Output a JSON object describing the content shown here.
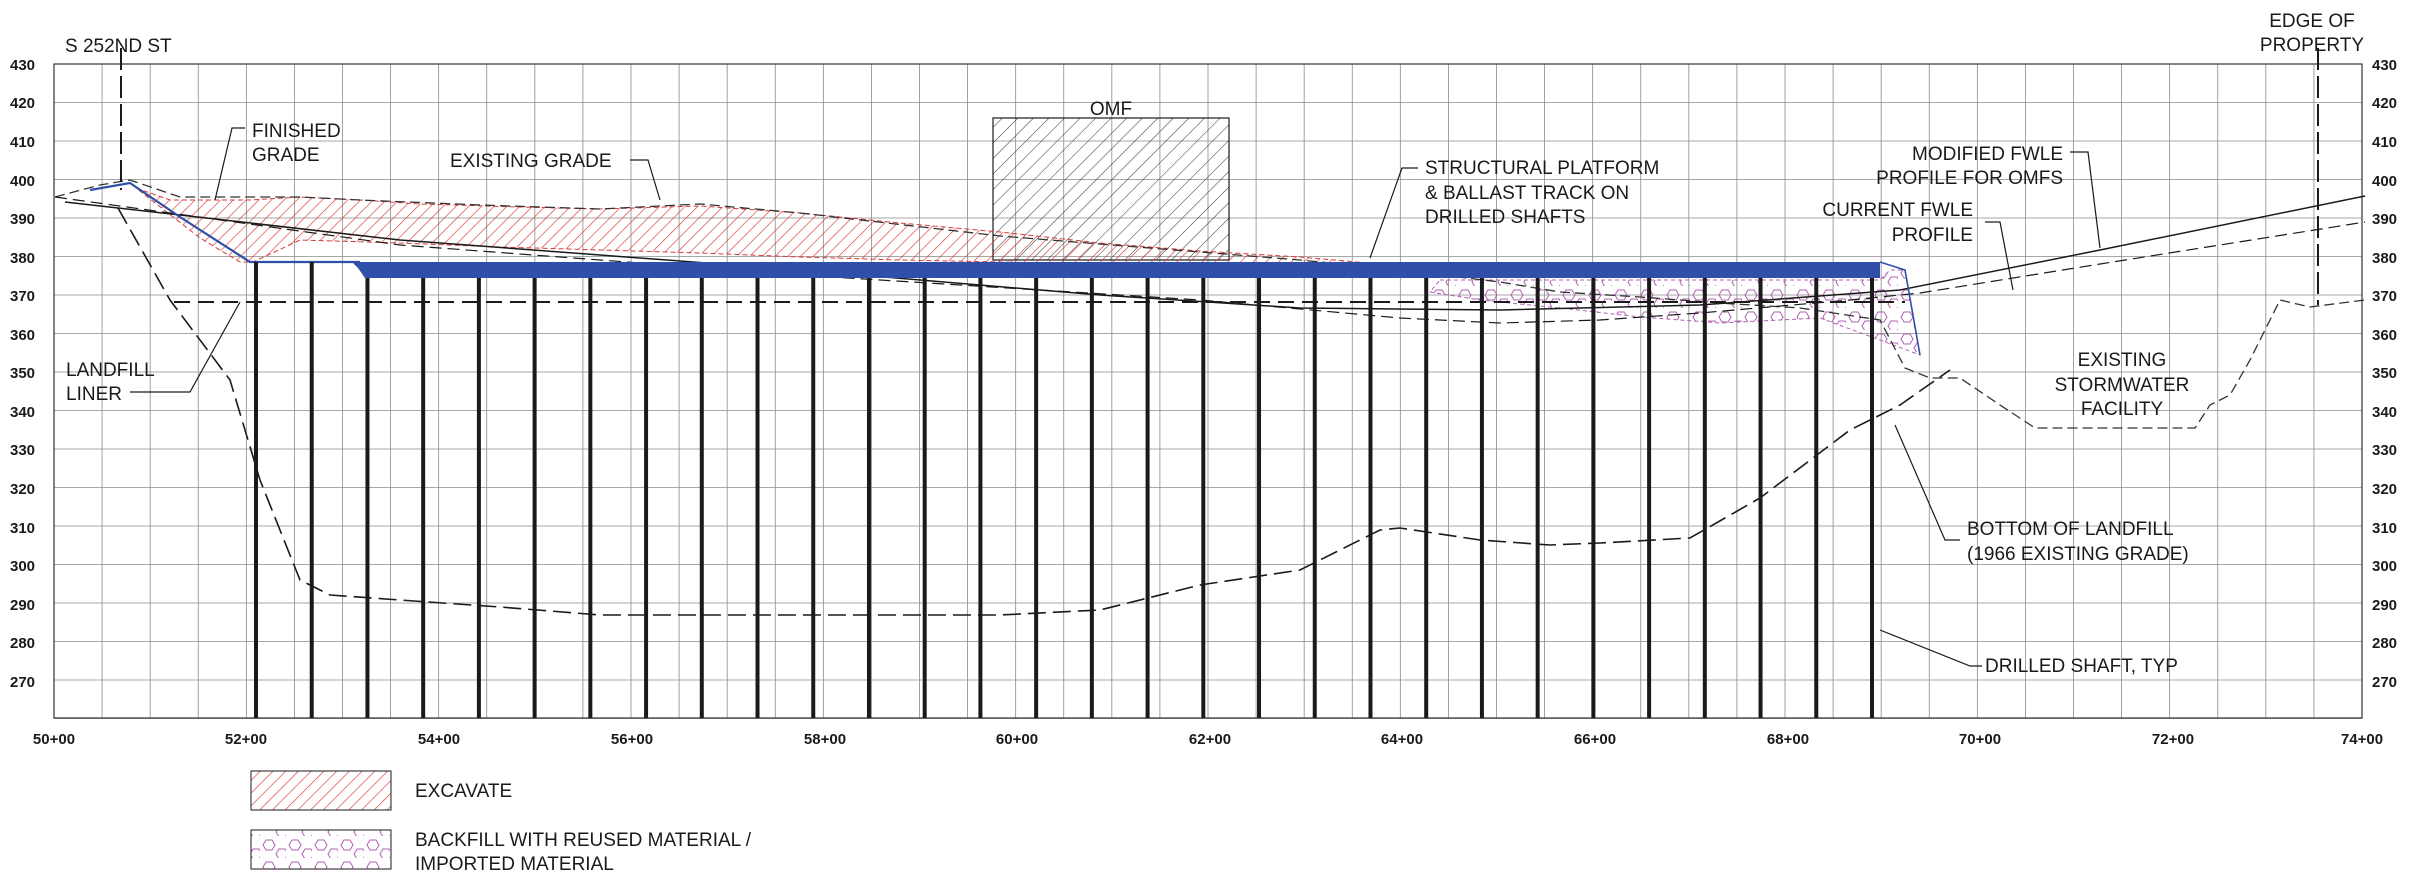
{
  "axes": {
    "elev_ticks": [
      "430",
      "420",
      "410",
      "400",
      "390",
      "380",
      "370",
      "360",
      "350",
      "340",
      "330",
      "320",
      "310",
      "300",
      "290",
      "280",
      "270"
    ],
    "station_ticks": [
      "50+00",
      "52+00",
      "54+00",
      "56+00",
      "58+00",
      "60+00",
      "62+00",
      "64+00",
      "66+00",
      "68+00",
      "70+00",
      "72+00",
      "74+00"
    ]
  },
  "labels": {
    "street": "S 252ND ST",
    "edge_1": "EDGE OF",
    "edge_2": "PROPERTY",
    "omf": "OMF",
    "finished_1": "FINISHED",
    "finished_2": "GRADE",
    "existing": "EXISTING GRADE",
    "platform_1": "STRUCTURAL PLATFORM",
    "platform_2": "& BALLAST TRACK ON",
    "platform_3": "DRILLED SHAFTS",
    "modified_1": "MODIFIED FWLE",
    "modified_2": "PROFILE FOR OMFS",
    "current_1": "CURRENT FWLE",
    "current_2": "PROFILE",
    "landfill_1": "LANDFILL",
    "landfill_2": "LINER",
    "storm_1": "EXISTING",
    "storm_2": "STORMWATER",
    "storm_3": "FACILITY",
    "bottom_1": "BOTTOM OF LANDFILL",
    "bottom_2": "(1966 EXISTING GRADE)",
    "shaft": "DRILLED SHAFT, TYP"
  },
  "legend": {
    "excavate": "EXCAVATE",
    "backfill_1": "BACKFILL WITH REUSED MATERIAL /",
    "backfill_2": "IMPORTED MATERIAL"
  },
  "colors": {
    "platform": "#2f4fa8",
    "excavate": "#d83a3a",
    "backfill": "#b05fb0",
    "grid": "#8a8a8a",
    "ink": "#1a1a1a"
  }
}
